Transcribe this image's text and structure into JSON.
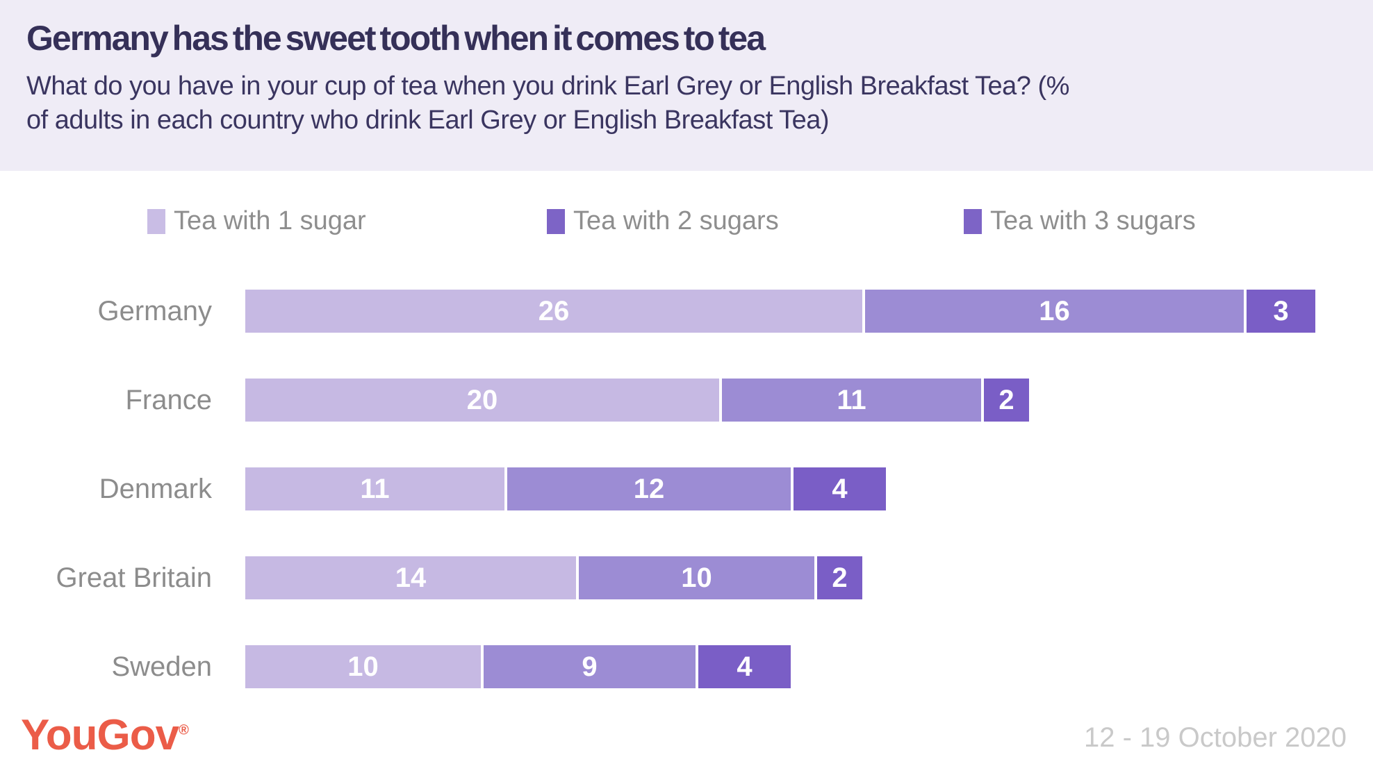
{
  "header": {
    "title": "Germany has the sweet tooth when it comes to tea",
    "subtitle": "What do you have in your cup of tea when you drink Earl Grey or English Breakfast Tea? (% of adults in each country who drink Earl Grey or English Breakfast Tea)"
  },
  "legend": {
    "items": [
      {
        "label": "Tea with 1 sugar",
        "swatch_color": "#C9BDE5"
      },
      {
        "label": "Tea with 2 sugars",
        "swatch_color": "#7D64C6"
      },
      {
        "label": "Tea with 3 sugars",
        "swatch_color": "#7D64C6"
      }
    ]
  },
  "chart_data": {
    "type": "bar",
    "orientation": "horizontal_stacked",
    "title": "Germany has the sweet tooth when it comes to tea",
    "categories": [
      "Germany",
      "France",
      "Denmark",
      "Great Britain",
      "Sweden"
    ],
    "series": [
      {
        "name": "Tea with 1 sugar",
        "color": "#C6B9E3",
        "values": [
          26,
          20,
          11,
          14,
          10
        ]
      },
      {
        "name": "Tea with 2 sugars",
        "color": "#9C8CD4",
        "values": [
          16,
          11,
          12,
          10,
          9
        ]
      },
      {
        "name": "Tea with 3 sugars",
        "color": "#7A5EC6",
        "values": [
          3,
          2,
          4,
          2,
          4
        ]
      }
    ],
    "totals": [
      45,
      33,
      27,
      26,
      23
    ],
    "value_labels": "inside_segments_white",
    "xlim": [
      0,
      45
    ],
    "grid": false,
    "legend_position": "top"
  },
  "footer": {
    "logo_text": "YouGov",
    "logo_registered_mark": "®",
    "logo_color": "#EB5C48",
    "date_range": "12 - 19 October 2020"
  },
  "colors": {
    "page_background": "#FFFFFF",
    "header_background": "#EFECF6",
    "title_text": "#353058",
    "subtitle_text": "#3A3560",
    "legend_text": "#8E8E8E",
    "category_label_text": "#8C8C8C",
    "bar_value_text": "#FFFFFF"
  }
}
